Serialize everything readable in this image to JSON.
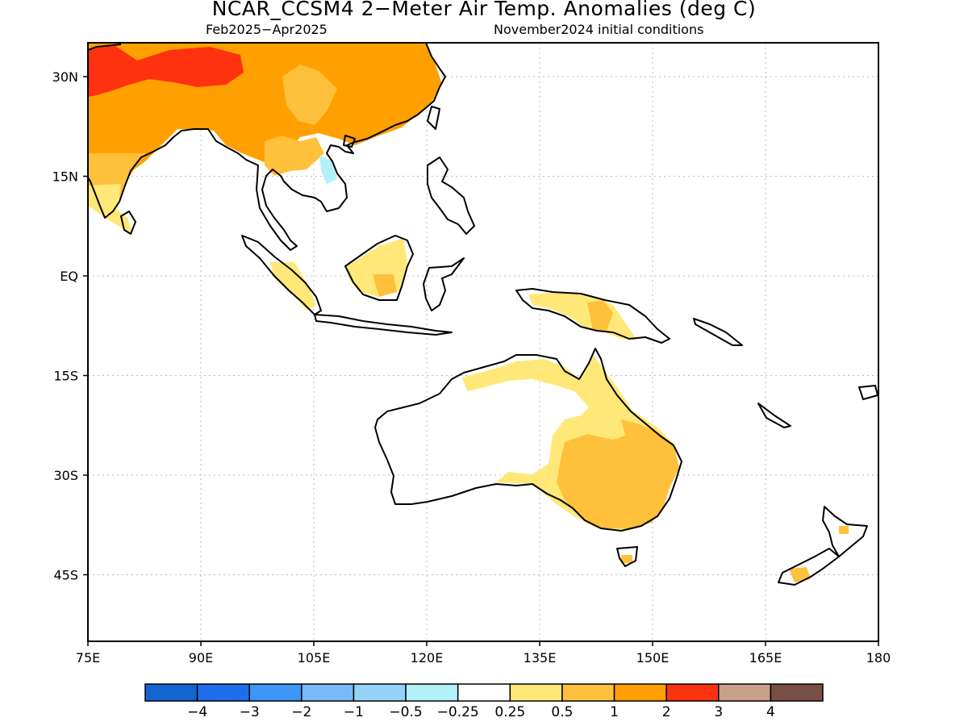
{
  "title": "NCAR_CCSM4 2−Meter Air Temp. Anomalies (deg C)",
  "period": "Feb2025−Apr2025",
  "init": "November2024 initial conditions",
  "lon_ticks": [
    "75E",
    "90E",
    "105E",
    "120E",
    "135E",
    "150E",
    "165E",
    "180"
  ],
  "lat_ticks": [
    "30N",
    "15N",
    "EQ",
    "15S",
    "30S",
    "45S"
  ],
  "colorbar": {
    "colors": [
      "#1464d2",
      "#1e6eeb",
      "#3c96f5",
      "#78b9fa",
      "#96d2fa",
      "#b4f0fa",
      "#ffffff",
      "#ffe878",
      "#ffc03c",
      "#ffa000",
      "#ff3210",
      "#c8a08c",
      "#785046"
    ],
    "labels": [
      "−4",
      "−3",
      "−2",
      "−1",
      "−0.5",
      "−0.25",
      "0.25",
      "0.5",
      "1",
      "2",
      "3",
      "4"
    ]
  }
}
